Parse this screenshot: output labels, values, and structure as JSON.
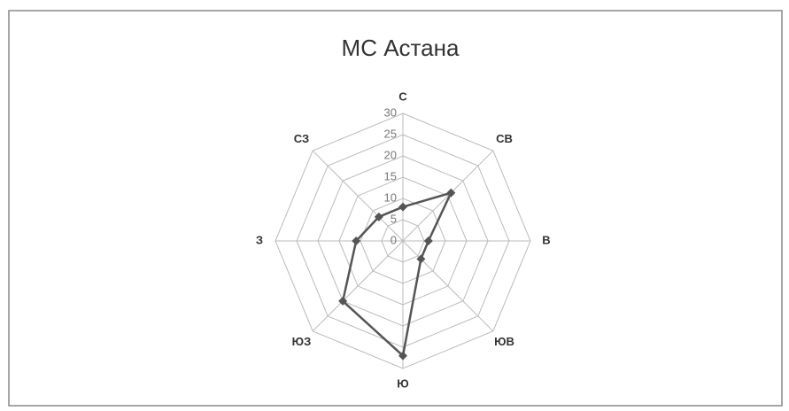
{
  "chart_data": {
    "type": "radar",
    "title": "МС  Астана",
    "categories": [
      "С",
      "СВ",
      "В",
      "ЮВ",
      "Ю",
      "ЮЗ",
      "З",
      "СЗ"
    ],
    "values": [
      8,
      16,
      6,
      6,
      27,
      20,
      11,
      8
    ],
    "color": "#555555",
    "ylim": [
      0,
      30
    ],
    "yticks": [
      0,
      5,
      10,
      15,
      20,
      25,
      30
    ],
    "grid": true
  }
}
